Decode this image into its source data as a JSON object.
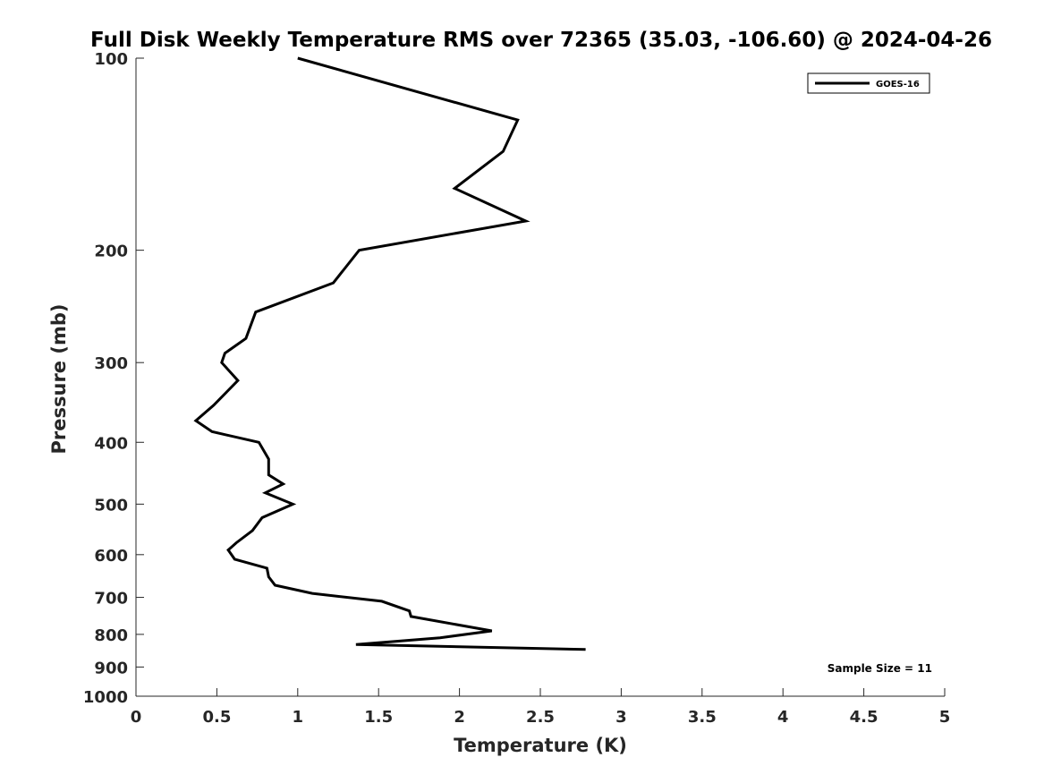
{
  "chart_data": {
    "type": "line",
    "title": "Full Disk Weekly Temperature RMS over 72365 (35.03, -106.60) @ 2024-04-26",
    "xlabel": "Temperature (K)",
    "ylabel": "Pressure (mb)",
    "xlim": [
      0,
      5
    ],
    "ylim": [
      100,
      1000
    ],
    "y_scale": "log",
    "y_reversed": true,
    "x_ticks": [
      0,
      0.5,
      1,
      1.5,
      2,
      2.5,
      3,
      3.5,
      4,
      4.5,
      5
    ],
    "x_tick_labels": [
      "0",
      "0.5",
      "1",
      "1.5",
      "2",
      "2.5",
      "3",
      "3.5",
      "4",
      "4.5",
      "5"
    ],
    "y_ticks": [
      100,
      200,
      300,
      400,
      500,
      600,
      700,
      800,
      900,
      1000
    ],
    "y_tick_labels": [
      "100",
      "200",
      "300",
      "400",
      "500",
      "600",
      "700",
      "800",
      "900",
      "1000"
    ],
    "grid": false,
    "legend_position": "top-right",
    "series": [
      {
        "name": "GOES-16",
        "color": "#000000",
        "x": [
          1.0,
          2.36,
          2.27,
          1.97,
          2.41,
          1.38,
          1.22,
          0.74,
          0.68,
          0.55,
          0.53,
          0.63,
          0.48,
          0.37,
          0.47,
          0.76,
          0.82,
          0.82,
          0.91,
          0.8,
          0.97,
          0.78,
          0.72,
          0.62,
          0.57,
          0.61,
          0.81,
          0.82,
          0.86,
          1.09,
          1.52,
          1.69,
          1.7,
          2.2,
          1.88,
          1.36,
          2.78
        ],
        "y": [
          100,
          125,
          140,
          160,
          180,
          200,
          225,
          250,
          275,
          290,
          300,
          320,
          350,
          370,
          385,
          400,
          425,
          450,
          465,
          480,
          500,
          525,
          550,
          575,
          590,
          610,
          630,
          650,
          670,
          690,
          710,
          735,
          750,
          790,
          810,
          830,
          845
        ]
      }
    ],
    "annotations": [
      "Sample Size = 11"
    ]
  }
}
